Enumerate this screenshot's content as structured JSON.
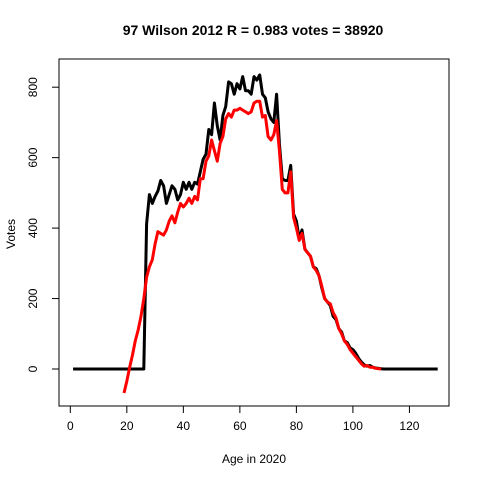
{
  "chart_data": {
    "type": "line",
    "title": "97 Wilson 2012 R = 0.983 votes = 38920",
    "xlabel": "Age in 2020",
    "ylabel": "Votes",
    "xlim": [
      -4,
      134
    ],
    "ylim": [
      -105,
      880
    ],
    "xticks": [
      0,
      20,
      40,
      60,
      80,
      100,
      120
    ],
    "yticks": [
      0,
      200,
      400,
      600,
      800
    ],
    "grid": false,
    "series": [
      {
        "color": "#000000",
        "x": [
          1,
          2,
          3,
          4,
          5,
          6,
          7,
          8,
          9,
          10,
          11,
          12,
          13,
          14,
          15,
          16,
          17,
          18,
          19,
          20,
          21,
          22,
          23,
          24,
          25,
          26,
          27,
          28,
          29,
          30,
          31,
          32,
          33,
          34,
          35,
          36,
          37,
          38,
          39,
          40,
          41,
          42,
          43,
          44,
          45,
          46,
          47,
          48,
          49,
          50,
          51,
          52,
          53,
          54,
          55,
          56,
          57,
          58,
          59,
          60,
          61,
          62,
          63,
          64,
          65,
          66,
          67,
          68,
          69,
          70,
          71,
          72,
          73,
          74,
          75,
          76,
          77,
          78,
          79,
          80,
          81,
          82,
          83,
          84,
          85,
          86,
          87,
          88,
          89,
          90,
          91,
          92,
          93,
          94,
          95,
          96,
          97,
          98,
          99,
          100,
          101,
          102,
          103,
          104,
          105,
          106,
          107,
          108,
          109,
          110,
          111,
          112,
          113,
          114,
          115,
          116,
          117,
          118,
          119,
          120,
          121,
          122,
          123,
          124,
          125,
          126,
          127,
          128,
          129,
          130
        ],
        "y": [
          0,
          0,
          0,
          0,
          0,
          0,
          0,
          0,
          0,
          0,
          0,
          0,
          0,
          0,
          0,
          0,
          0,
          0,
          0,
          0,
          0,
          0,
          0,
          0,
          0,
          0,
          412,
          495,
          470,
          490,
          505,
          535,
          520,
          470,
          495,
          520,
          510,
          480,
          495,
          530,
          510,
          530,
          510,
          530,
          525,
          560,
          595,
          610,
          680,
          665,
          755,
          690,
          650,
          720,
          745,
          815,
          810,
          780,
          810,
          795,
          830,
          790,
          790,
          780,
          830,
          820,
          835,
          780,
          770,
          730,
          710,
          700,
          780,
          640,
          540,
          535,
          535,
          578,
          440,
          420,
          370,
          395,
          340,
          330,
          320,
          290,
          285,
          265,
          230,
          200,
          190,
          180,
          150,
          140,
          115,
          105,
          80,
          75,
          60,
          55,
          45,
          30,
          20,
          12,
          8,
          10,
          5,
          3,
          2,
          1,
          0,
          0,
          0,
          0,
          0,
          0,
          0,
          0,
          0,
          0,
          0,
          0,
          0,
          0,
          0,
          0,
          0,
          0,
          0,
          0
        ]
      },
      {
        "color": "#ff0000",
        "x": [
          19,
          20,
          21,
          22,
          23,
          24,
          25,
          26,
          27,
          28,
          29,
          30,
          31,
          32,
          33,
          34,
          35,
          36,
          37,
          38,
          39,
          40,
          41,
          42,
          43,
          44,
          45,
          46,
          47,
          48,
          49,
          50,
          51,
          52,
          53,
          54,
          55,
          56,
          57,
          58,
          59,
          60,
          61,
          62,
          63,
          64,
          65,
          66,
          67,
          68,
          69,
          70,
          71,
          72,
          73,
          74,
          75,
          76,
          77,
          78,
          79,
          80,
          81,
          82,
          83,
          84,
          85,
          86,
          87,
          88,
          89,
          90,
          91,
          92,
          93,
          94,
          95,
          96,
          97,
          98,
          99,
          100,
          101,
          102,
          103,
          104,
          105,
          106,
          107,
          108,
          109,
          110
        ],
        "y": [
          -68,
          -35,
          5,
          40,
          80,
          110,
          150,
          200,
          260,
          290,
          310,
          355,
          390,
          385,
          380,
          395,
          420,
          435,
          415,
          445,
          470,
          460,
          470,
          485,
          470,
          490,
          480,
          540,
          540,
          590,
          605,
          650,
          620,
          590,
          640,
          660,
          710,
          725,
          715,
          735,
          735,
          740,
          735,
          730,
          725,
          730,
          755,
          760,
          760,
          715,
          720,
          660,
          650,
          665,
          705,
          620,
          510,
          500,
          500,
          560,
          430,
          400,
          365,
          385,
          340,
          330,
          320,
          290,
          280,
          265,
          235,
          200,
          190,
          185,
          160,
          145,
          115,
          100,
          80,
          70,
          55,
          45,
          35,
          25,
          15,
          8,
          10,
          5,
          5,
          2,
          1,
          0
        ]
      }
    ]
  }
}
